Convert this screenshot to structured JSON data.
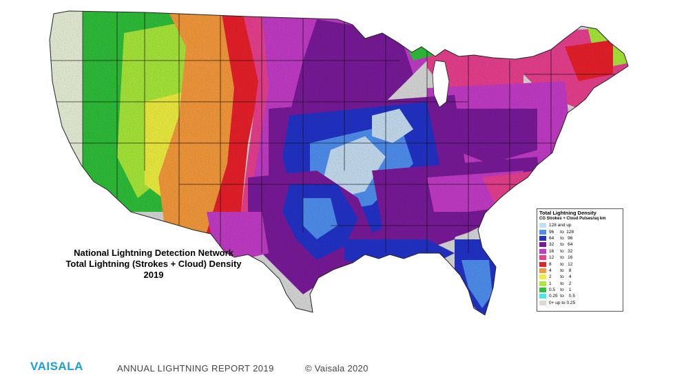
{
  "map": {
    "title_lines": [
      "National Lightning Detection Network",
      "Total Lightning (Strokes + Cloud) Density",
      "2019"
    ]
  },
  "legend": {
    "title": "Total Lightning Density",
    "subtitle": "CG Strokes + Cloud Pulses/sq km",
    "entries": [
      {
        "label": "128 and up",
        "color": "#c6def2"
      },
      {
        "label": "96     to  128",
        "color": "#4f8ff0"
      },
      {
        "label": "64     to   96",
        "color": "#2233c8"
      },
      {
        "label": "32     to   64",
        "color": "#7a1a9a"
      },
      {
        "label": "16     to   32",
        "color": "#c33cc7"
      },
      {
        "label": "12     to   16",
        "color": "#e8408e"
      },
      {
        "label": "8       to   12",
        "color": "#e8202a"
      },
      {
        "label": "4       to    8",
        "color": "#f59a3c"
      },
      {
        "label": "2       to    4",
        "color": "#eeee40"
      },
      {
        "label": "1       to    2",
        "color": "#a8e83a"
      },
      {
        "label": "0.5    to    1",
        "color": "#2fbf3a"
      },
      {
        "label": "0.25  to    0.5",
        "color": "#49e8e8"
      },
      {
        "label": "0+ up to 0.25",
        "color": "#d9d9d9"
      }
    ]
  },
  "footer": {
    "logo": "VAISALA",
    "report": "ANNUAL LIGHTNING REPORT 2019",
    "copyright": "© Vaisala 2020"
  }
}
